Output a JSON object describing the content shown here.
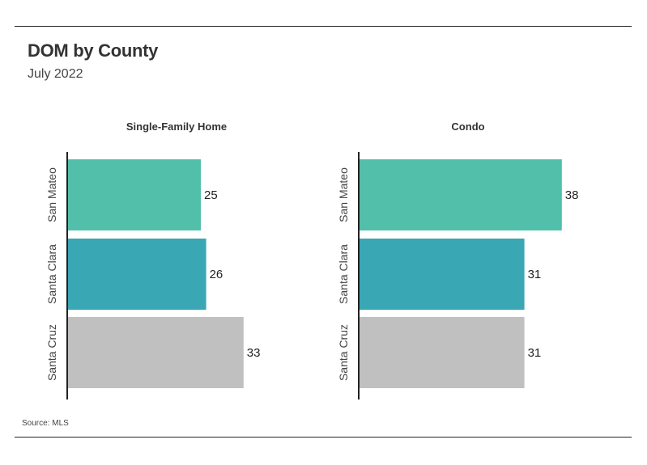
{
  "title": "DOM by County",
  "subtitle": "July 2022",
  "source": "Source:  MLS",
  "colors": {
    "San Mateo": "#52bfaa",
    "Santa Clara": "#3aa7b4",
    "Santa Cruz": "#c0c0c0",
    "axis": "#222222"
  },
  "chart_data": [
    {
      "type": "bar",
      "orientation": "horizontal",
      "title": "Single-Family Home",
      "categories": [
        "San Mateo",
        "Santa Clara",
        "Santa Cruz"
      ],
      "values": [
        25,
        26,
        33
      ],
      "data_labels": [
        "25",
        "26",
        "33"
      ],
      "xlim": [
        0,
        38
      ],
      "grid": false
    },
    {
      "type": "bar",
      "orientation": "horizontal",
      "title": "Condo",
      "categories": [
        "San Mateo",
        "Santa Clara",
        "Santa Cruz"
      ],
      "values": [
        38,
        31,
        31
      ],
      "data_labels": [
        "38",
        "31",
        "31"
      ],
      "xlim": [
        0,
        38
      ],
      "grid": false
    }
  ]
}
